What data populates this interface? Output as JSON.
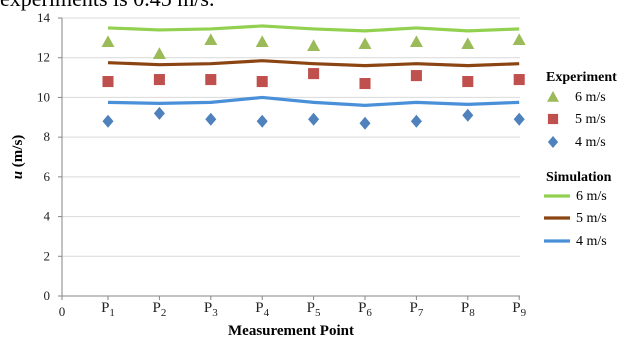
{
  "caption_fragment": "experiments is 0.45 m/s.",
  "chart_data": {
    "type": "line",
    "xlabel": "Measurement Point",
    "ylabel": "u (m/s)",
    "ylabel_var": "u",
    "ylabel_unit": " (m/s)",
    "ylim": [
      0,
      14
    ],
    "yticks": [
      0,
      2,
      4,
      6,
      8,
      10,
      12,
      14
    ],
    "x_origin_label": "0",
    "categories": [
      {
        "base": "P",
        "sub": "1"
      },
      {
        "base": "P",
        "sub": "2"
      },
      {
        "base": "P",
        "sub": "3"
      },
      {
        "base": "P",
        "sub": "4"
      },
      {
        "base": "P",
        "sub": "5"
      },
      {
        "base": "P",
        "sub": "6"
      },
      {
        "base": "P",
        "sub": "7"
      },
      {
        "base": "P",
        "sub": "8"
      },
      {
        "base": "P",
        "sub": "9"
      }
    ],
    "grid": "horizontal",
    "legend_position": "right",
    "legend": {
      "experiment_title": "Experiment",
      "simulation_title": "Simulation"
    },
    "experiment_series": [
      {
        "name": "6 m/s",
        "marker": "triangle",
        "color": "#9bbb59",
        "values": [
          12.8,
          12.2,
          12.9,
          12.8,
          12.6,
          12.7,
          12.8,
          12.7,
          12.9
        ]
      },
      {
        "name": "5 m/s",
        "marker": "square",
        "color": "#c0504d",
        "values": [
          10.8,
          10.9,
          10.9,
          10.8,
          11.2,
          10.7,
          11.1,
          10.8,
          10.9
        ]
      },
      {
        "name": "4 m/s",
        "marker": "diamond",
        "color": "#4f81bd",
        "values": [
          8.8,
          9.2,
          8.9,
          8.8,
          8.9,
          8.7,
          8.8,
          9.1,
          8.9
        ]
      }
    ],
    "simulation_series": [
      {
        "name": "6 m/s",
        "color": "#92d050",
        "values": [
          13.5,
          13.4,
          13.45,
          13.6,
          13.45,
          13.35,
          13.5,
          13.35,
          13.45
        ]
      },
      {
        "name": "5 m/s",
        "color": "#8b4513",
        "values": [
          11.75,
          11.65,
          11.7,
          11.85,
          11.7,
          11.6,
          11.7,
          11.6,
          11.7
        ]
      },
      {
        "name": "4 m/s",
        "color": "#4a90d9",
        "values": [
          9.75,
          9.7,
          9.75,
          10.0,
          9.75,
          9.6,
          9.75,
          9.65,
          9.75
        ]
      }
    ]
  }
}
